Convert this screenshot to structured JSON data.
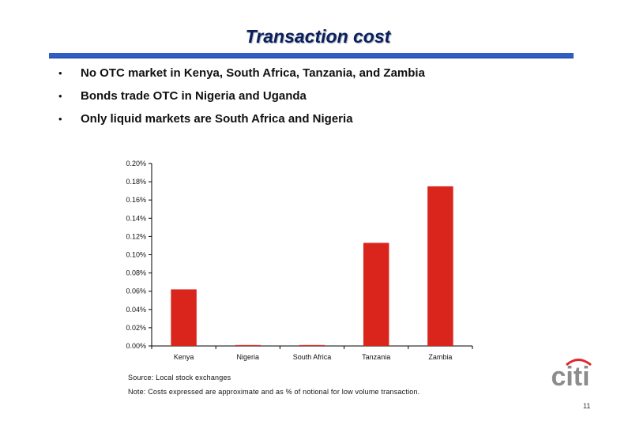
{
  "slide": {
    "title": "Transaction cost",
    "bullets": [
      "No OTC market in Kenya, South Africa, Tanzania, and Zambia",
      "Bonds trade OTC in Nigeria and Uganda",
      "Only liquid markets are South Africa and Nigeria"
    ],
    "bullet_glyph": "•",
    "source": "Source: Local stock exchanges",
    "note": "Note: Costs expressed are approximate and as % of notional for low volume transaction.",
    "logo_text": "citi",
    "page_number": "11",
    "colors": {
      "title": "#0a1f5c",
      "rule": "#2f5fc4",
      "bar": "#d9251c",
      "logo_text": "#8c8c8c",
      "logo_arc": "#e3262a"
    }
  },
  "chart_data": {
    "type": "bar",
    "categories": [
      "Kenya",
      "Nigeria",
      "South Africa",
      "Tanzania",
      "Zambia"
    ],
    "values": [
      0.00062,
      1e-05,
      1e-05,
      0.00113,
      0.00175
    ],
    "title": "",
    "xlabel": "",
    "ylabel": "",
    "ylim": [
      0,
      0.002
    ],
    "y_ticks": [
      "0.00%",
      "0.02%",
      "0.04%",
      "0.06%",
      "0.08%",
      "0.10%",
      "0.12%",
      "0.14%",
      "0.16%",
      "0.18%",
      "0.20%"
    ],
    "grid": false,
    "legend": "none",
    "bar_color": "#d9251c"
  }
}
